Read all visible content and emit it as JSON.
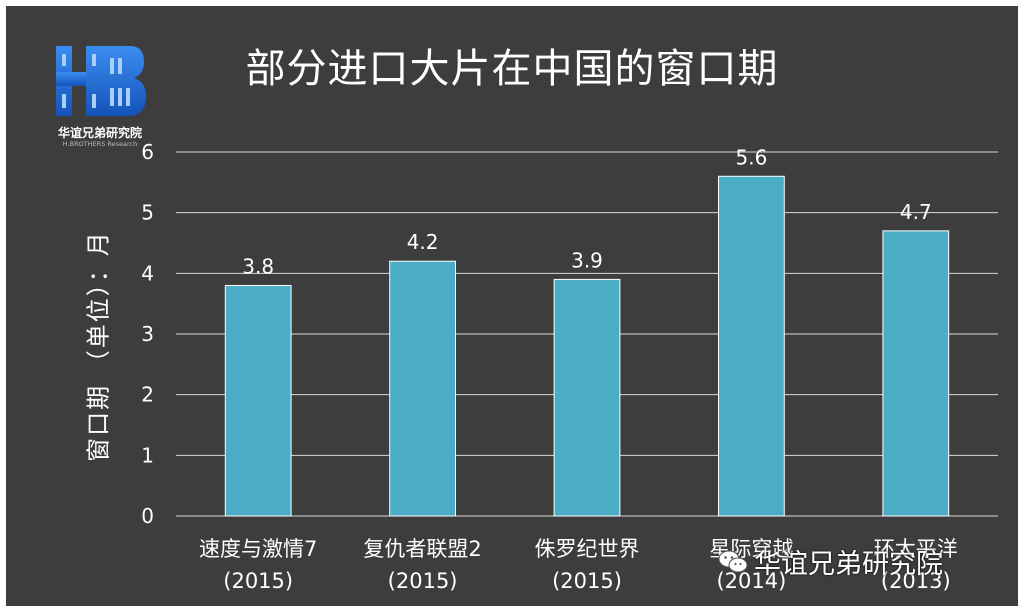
{
  "title": "部分进口大片在中国的窗口期",
  "logo": {
    "name": "华谊兄弟研究院",
    "sub": "H.BROTHERS Research"
  },
  "watermark": {
    "text": "华谊兄弟研究院",
    "icon": "wechat-icon"
  },
  "colors": {
    "background": "#3d3d3d",
    "bar": "#4bacc6",
    "grid": "#d9d9d9",
    "text": "#ffffff",
    "logo_blue": "#1e6fd9"
  },
  "chart_data": {
    "type": "bar",
    "title": "部分进口大片在中国的窗口期",
    "ylabel": "窗口期 （单位）：月",
    "xlabel": "",
    "categories": [
      [
        "速度与激情7",
        "(2015)"
      ],
      [
        "复仇者联盟2",
        "(2015)"
      ],
      [
        "侏罗纪世界",
        "(2015)"
      ],
      [
        "星际穿越",
        "(2014)"
      ],
      [
        "环太平洋",
        "(2013)"
      ]
    ],
    "values": [
      3.8,
      4.2,
      3.9,
      5.6,
      4.7
    ],
    "data_labels": [
      "3.8",
      "4.2",
      "3.9",
      "5.6",
      "4.7"
    ],
    "ylim": [
      0,
      6
    ],
    "yticks": [
      0,
      1,
      2,
      3,
      4,
      5,
      6
    ],
    "grid": true,
    "legend": "none"
  }
}
